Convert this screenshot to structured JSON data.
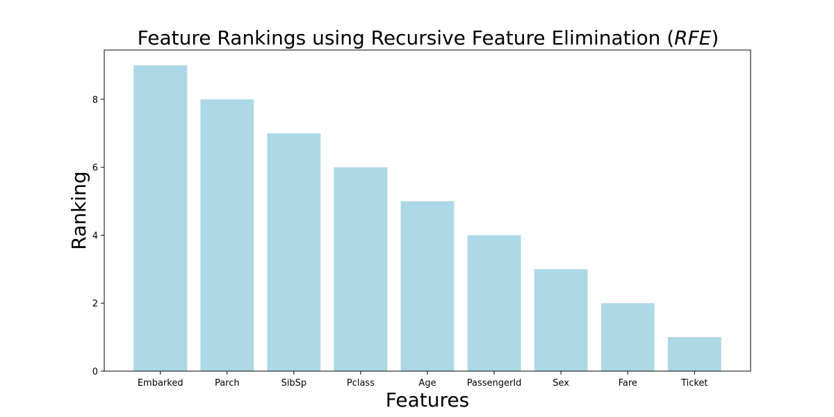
{
  "chart_data": {
    "type": "bar",
    "title": "Feature Rankings using Recursive Feature Elimination (",
    "title_italic": "RFE",
    "title_close": ")",
    "xlabel": "Features",
    "ylabel": "Ranking",
    "categories": [
      "Embarked",
      "Parch",
      "SibSp",
      "Pclass",
      "Age",
      "PassengerId",
      "Sex",
      "Fare",
      "Ticket"
    ],
    "values": [
      9,
      8,
      7,
      6,
      5,
      4,
      3,
      2,
      1
    ],
    "ylim": [
      0,
      9.45
    ],
    "yticks": [
      0,
      2,
      4,
      6,
      8
    ],
    "bar_color": "#add8e6",
    "grid": false,
    "legend": "none"
  }
}
